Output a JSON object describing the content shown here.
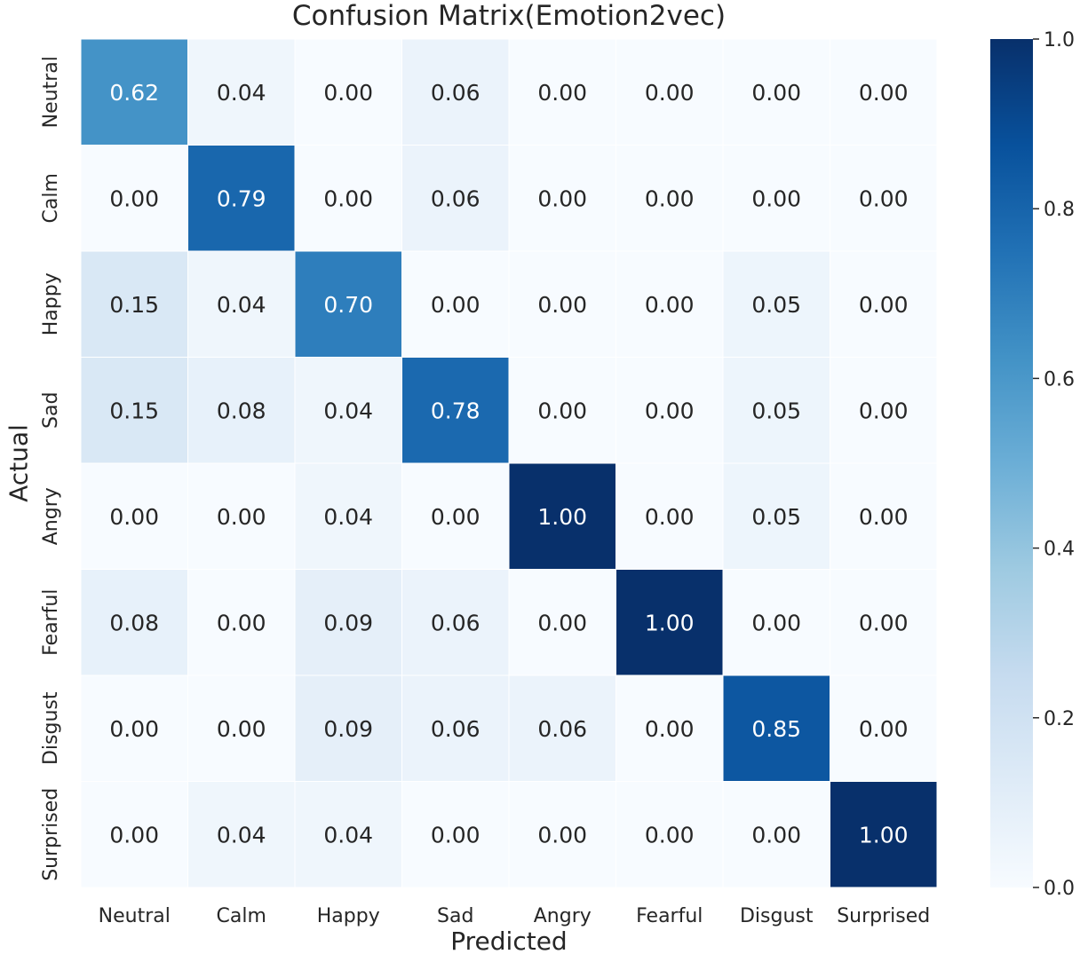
{
  "chart_data": {
    "type": "heatmap",
    "title": "Confusion Matrix(Emotion2vec)",
    "xlabel": "Predicted",
    "ylabel": "Actual",
    "x_categories": [
      "Neutral",
      "Calm",
      "Happy",
      "Sad",
      "Angry",
      "Fearful",
      "Disgust",
      "Surprised"
    ],
    "y_categories": [
      "Neutral",
      "Calm",
      "Happy",
      "Sad",
      "Angry",
      "Fearful",
      "Disgust",
      "Surprised"
    ],
    "values": [
      [
        0.62,
        0.04,
        0.0,
        0.06,
        0.0,
        0.0,
        0.0,
        0.0
      ],
      [
        0.0,
        0.79,
        0.0,
        0.06,
        0.0,
        0.0,
        0.0,
        0.0
      ],
      [
        0.15,
        0.04,
        0.7,
        0.0,
        0.0,
        0.0,
        0.05,
        0.0
      ],
      [
        0.15,
        0.08,
        0.04,
        0.78,
        0.0,
        0.0,
        0.05,
        0.0
      ],
      [
        0.0,
        0.0,
        0.04,
        0.0,
        1.0,
        0.0,
        0.05,
        0.0
      ],
      [
        0.08,
        0.0,
        0.09,
        0.06,
        0.0,
        1.0,
        0.0,
        0.0
      ],
      [
        0.0,
        0.0,
        0.09,
        0.06,
        0.06,
        0.0,
        0.85,
        0.0
      ],
      [
        0.0,
        0.04,
        0.04,
        0.0,
        0.0,
        0.0,
        0.0,
        1.0
      ]
    ],
    "value_format": "0.00",
    "colormap": "Blues",
    "colorbar": {
      "range": [
        0.0,
        1.0
      ],
      "ticks": [
        0.0,
        0.2,
        0.4,
        0.6,
        0.8,
        1.0
      ],
      "tick_labels": [
        "0.0",
        "0.2",
        "0.4",
        "0.6",
        "0.8",
        "1.0"
      ]
    }
  }
}
